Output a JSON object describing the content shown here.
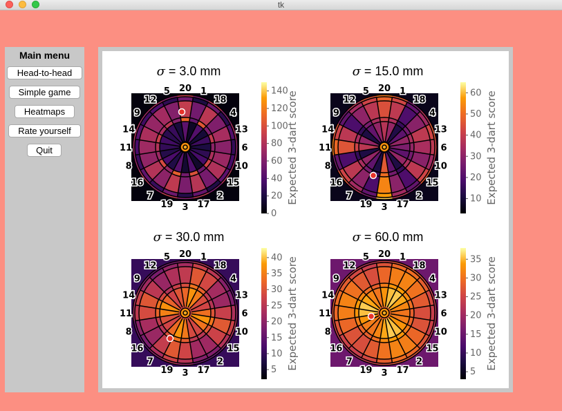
{
  "window": {
    "title": "tk"
  },
  "colors": {
    "background": "#fc8f82",
    "menu_bg": "#c8c8c8",
    "marker": "#e8342a"
  },
  "menu": {
    "title": "Main menu",
    "buttons": [
      "Head-to-head",
      "Simple game",
      "Heatmaps",
      "Rate yourself",
      "Quit"
    ]
  },
  "board_numbers": [
    "20",
    "1",
    "18",
    "4",
    "13",
    "6",
    "10",
    "15",
    "2",
    "17",
    "3",
    "19",
    "7",
    "16",
    "8",
    "11",
    "14",
    "9",
    "12",
    "5"
  ],
  "colormap": "inferno",
  "chart_data": [
    {
      "type": "heatmap",
      "sigma_symbol": "σ",
      "sigma_text": "= 3.0 mm",
      "sigma_mm": 3.0,
      "colorbar_label": "Expected 3-dart score",
      "colorbar_ticks": [
        "0",
        "20",
        "40",
        "60",
        "80",
        "100",
        "120",
        "140"
      ],
      "colorbar_range": [
        0,
        150
      ],
      "best_aim_marker": true
    },
    {
      "type": "heatmap",
      "sigma_symbol": "σ",
      "sigma_text": "= 15.0 mm",
      "sigma_mm": 15.0,
      "colorbar_label": "Expected 3-dart score",
      "colorbar_ticks": [
        "10",
        "20",
        "30",
        "40",
        "50",
        "60"
      ],
      "colorbar_range": [
        3,
        65
      ],
      "best_aim_marker": true
    },
    {
      "type": "heatmap",
      "sigma_symbol": "σ",
      "sigma_text": "= 30.0 mm",
      "sigma_mm": 30.0,
      "colorbar_label": "Expected 3-dart score",
      "colorbar_ticks": [
        "5",
        "10",
        "15",
        "20",
        "25",
        "30",
        "35",
        "40"
      ],
      "colorbar_range": [
        2,
        43
      ],
      "best_aim_marker": true
    },
    {
      "type": "heatmap",
      "sigma_symbol": "σ",
      "sigma_text": "= 60.0 mm",
      "sigma_mm": 60.0,
      "colorbar_label": "Expected 3-dart score",
      "colorbar_ticks": [
        "5",
        "10",
        "15",
        "20",
        "25",
        "30",
        "35"
      ],
      "colorbar_range": [
        3,
        38
      ],
      "best_aim_marker": true
    }
  ]
}
